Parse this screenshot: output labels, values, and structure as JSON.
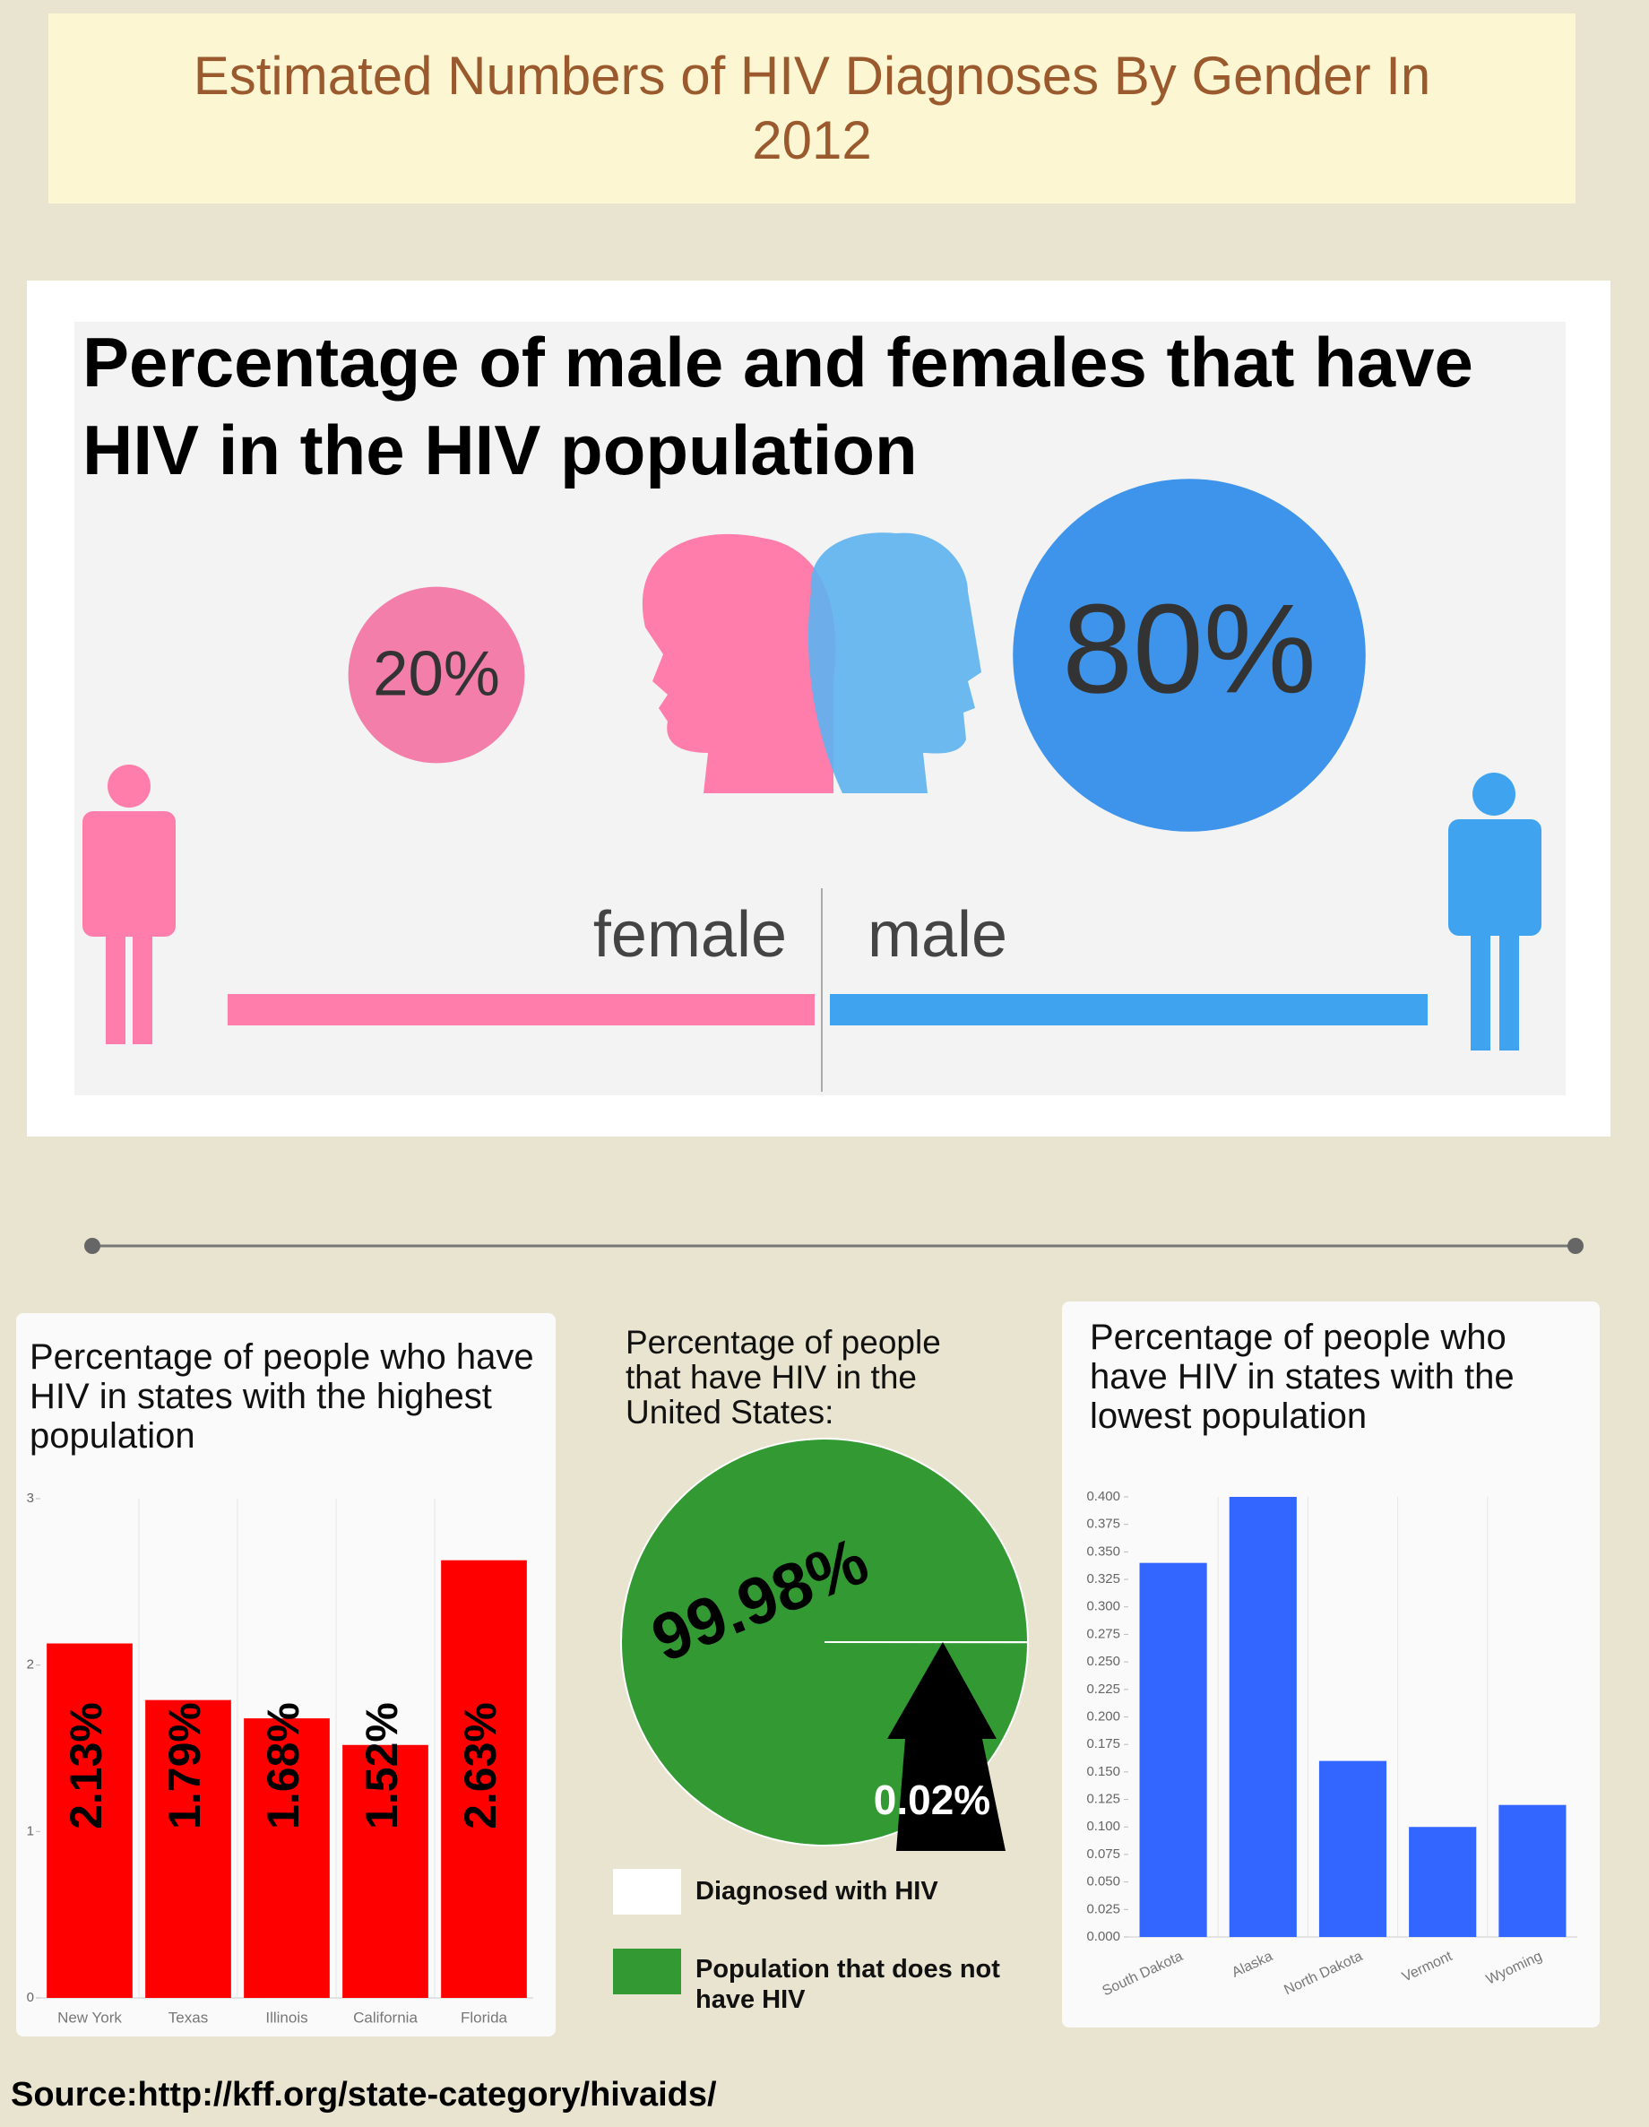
{
  "title": "Estimated Numbers of HIV Diagnoses By Gender In 2012",
  "source": "Source:http://kff.org/state-category/hivaids/",
  "chart_data": [
    {
      "type": "circles",
      "title": "Percentage of male and females that have HIV in the HIV population",
      "categories": [
        "female",
        "male"
      ],
      "values": [
        20,
        80
      ],
      "value_labels": [
        "20%",
        "80%"
      ],
      "colors": [
        "#f27ea9",
        "#3d94ea"
      ]
    },
    {
      "type": "bar",
      "title": "Percentage of people who have HIV in states with the highest population",
      "categories": [
        "New York",
        "Texas",
        "Illinois",
        "California",
        "Florida"
      ],
      "values": [
        2.13,
        1.79,
        1.68,
        1.52,
        2.63
      ],
      "value_labels": [
        "2.13%",
        "1.79%",
        "1.68%",
        "1.52%",
        "2.63%"
      ],
      "color": "#ff0000",
      "ylim": [
        0,
        3
      ],
      "yticks": [
        0,
        1,
        2,
        3
      ]
    },
    {
      "type": "pie",
      "title": "Percentage of people that have HIV in the United States:",
      "categories": [
        "Diagnosed with HIV",
        "Population that does not have HIV"
      ],
      "values": [
        0.02,
        99.98
      ],
      "value_labels": [
        "0.02%",
        "99.98%"
      ],
      "colors": [
        "#ffffff",
        "#339933"
      ]
    },
    {
      "type": "bar",
      "title": "Percentage of people who have HIV in states with the lowest population",
      "categories": [
        "South Dakota",
        "Alaska",
        "North Dakota",
        "Vermont",
        "Wyoming"
      ],
      "values": [
        0.34,
        0.4,
        0.16,
        0.1,
        0.12
      ],
      "color": "#3366ff",
      "ylim": [
        0,
        0.4
      ],
      "yticks": [
        {
          "value": 0,
          "label": "0.000"
        },
        0.025,
        {
          "value": 0.05,
          "label": "0.050"
        },
        {
          "value": 0.075,
          "label": "0.075"
        },
        {
          "value": 0.1,
          "label": "0.100"
        },
        0.125,
        {
          "value": 0.15,
          "label": "0.150"
        },
        0.175,
        {
          "value": 0.2,
          "label": "0.200"
        },
        0.225,
        {
          "value": 0.25,
          "label": "0.250"
        },
        0.275,
        {
          "value": 0.3,
          "label": "0.300"
        },
        0.325,
        {
          "value": 0.35,
          "label": "0.350"
        },
        0.375,
        {
          "value": 0.4,
          "label": "0.400"
        }
      ]
    }
  ]
}
